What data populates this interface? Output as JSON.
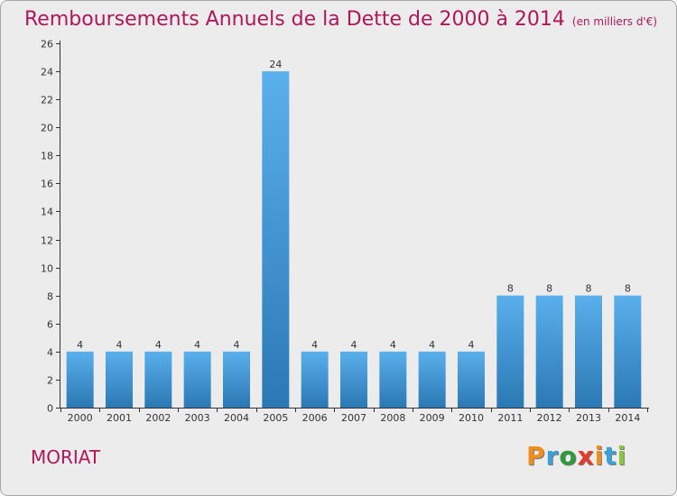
{
  "title": "Remboursements Annuels de la Dette de 2000 à 2014",
  "subtitle": "(en milliers d'€)",
  "commune": "MORIAT",
  "logo": {
    "text": "Proxiti",
    "colors": [
      "#f28c1c",
      "#3aa0d8",
      "#2e9a3a",
      "#e23b2a",
      "#f28c1c",
      "#3aa0d8",
      "#8cc63f"
    ]
  },
  "colors": {
    "title": "#b0175a",
    "bar_light": "#5ab0ec",
    "bar_dark": "#2a78b4",
    "background": "#ececec"
  },
  "chart_data": {
    "type": "bar",
    "title": "Remboursements Annuels de la Dette de 2000 à 2014",
    "subtitle": "(en milliers d'€)",
    "xlabel": "",
    "ylabel": "",
    "categories": [
      "2000",
      "2001",
      "2002",
      "2003",
      "2004",
      "2005",
      "2006",
      "2007",
      "2008",
      "2009",
      "2010",
      "2011",
      "2012",
      "2013",
      "2014"
    ],
    "values": [
      4,
      4,
      4,
      4,
      4,
      24,
      4,
      4,
      4,
      4,
      4,
      8,
      8,
      8,
      8
    ],
    "ylim": [
      0,
      26
    ],
    "yticks": [
      0,
      2,
      4,
      6,
      8,
      10,
      12,
      14,
      16,
      18,
      20,
      22,
      24,
      26
    ],
    "grid": false,
    "data_labels": true
  }
}
